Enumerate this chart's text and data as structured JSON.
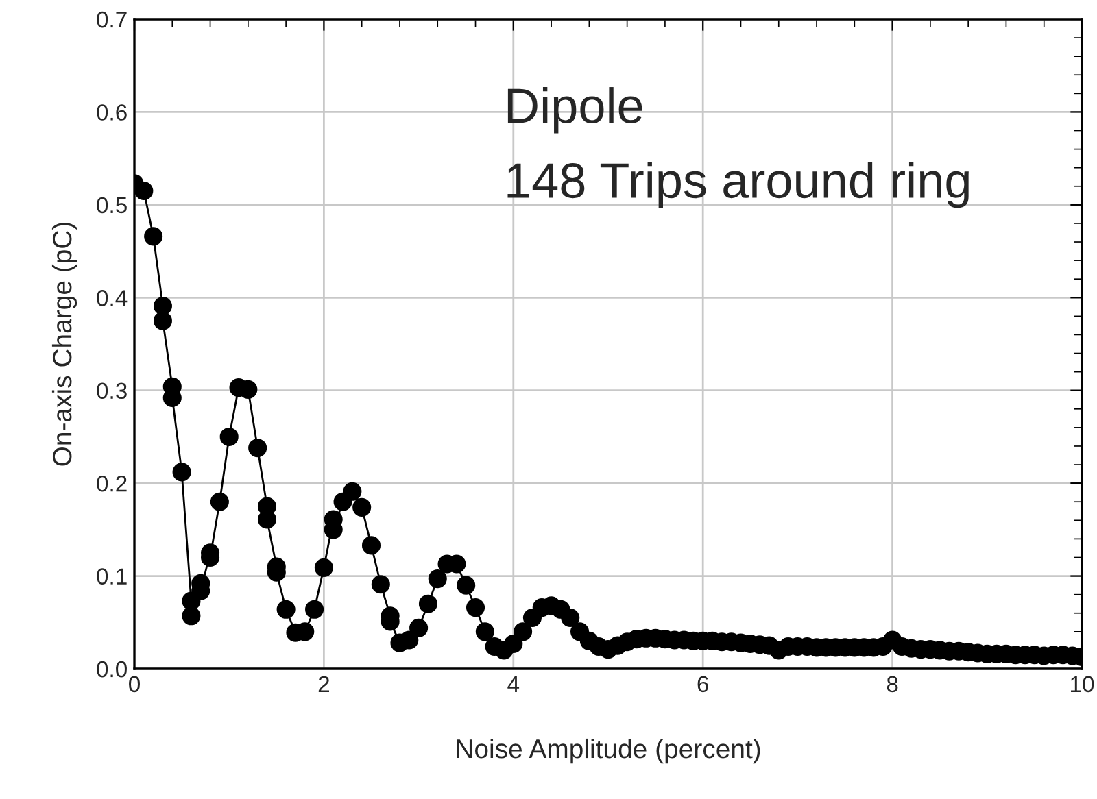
{
  "chart_data": {
    "type": "line",
    "xlabel": "Noise Amplitude (percent)",
    "ylabel": "On-axis Charge (pC)",
    "annotations": [
      "Dipole",
      "148 Trips around ring"
    ],
    "xlim": [
      0,
      10
    ],
    "xticks": [
      0,
      2,
      4,
      6,
      8,
      10
    ],
    "ylim": [
      0,
      0.7
    ],
    "yticks": [
      {
        "value": 0,
        "label": "0.0"
      },
      0.1,
      0.2,
      0.3,
      0.4,
      0.5,
      0.6,
      0.7
    ],
    "grid": true,
    "marker": "circle",
    "line_style": "solid",
    "series": [
      {
        "color": "#000000",
        "x": [
          0,
          0.1,
          0.2,
          0.3,
          0.3,
          0.4,
          0.4,
          0.5,
          0.6,
          0.6,
          0.7,
          0.7,
          0.8,
          0.8,
          0.9,
          1.0,
          1.1,
          1.2,
          1.3,
          1.4,
          1.4,
          1.5,
          1.5,
          1.6,
          1.7,
          1.8,
          1.9,
          2.0,
          2.1,
          2.1,
          2.2,
          2.3,
          2.4,
          2.5,
          2.6,
          2.7,
          2.7,
          2.8,
          2.9,
          3.0,
          3.1,
          3.2,
          3.3,
          3.4,
          3.5,
          3.6,
          3.7,
          3.8,
          3.9,
          4.0,
          4.1,
          4.2,
          4.3,
          4.4,
          4.5,
          4.6,
          4.7,
          4.8,
          4.9,
          5.0,
          5.1,
          5.2,
          5.3,
          5.4,
          5.5,
          5.6,
          5.7,
          5.8,
          5.9,
          6.0,
          6.1,
          6.2,
          6.3,
          6.4,
          6.5,
          6.6,
          6.7,
          6.8,
          6.9,
          7.0,
          7.1,
          7.2,
          7.3,
          7.4,
          7.5,
          7.6,
          7.7,
          7.8,
          7.9,
          8.0,
          8.1,
          8.2,
          8.3,
          8.4,
          8.5,
          8.6,
          8.7,
          8.8,
          8.9,
          9.0,
          9.1,
          9.2,
          9.3,
          9.4,
          9.5,
          9.6,
          9.7,
          9.8,
          9.9,
          10.0
        ],
        "values": [
          0.523,
          0.515,
          0.466,
          0.391,
          0.375,
          0.304,
          0.292,
          0.212,
          0.073,
          0.057,
          0.092,
          0.084,
          0.125,
          0.12,
          0.18,
          0.25,
          0.303,
          0.301,
          0.238,
          0.175,
          0.161,
          0.11,
          0.104,
          0.064,
          0.039,
          0.04,
          0.064,
          0.109,
          0.161,
          0.15,
          0.18,
          0.191,
          0.174,
          0.133,
          0.091,
          0.057,
          0.051,
          0.028,
          0.031,
          0.044,
          0.07,
          0.097,
          0.113,
          0.113,
          0.09,
          0.066,
          0.04,
          0.024,
          0.02,
          0.027,
          0.04,
          0.055,
          0.066,
          0.068,
          0.064,
          0.055,
          0.04,
          0.03,
          0.024,
          0.021,
          0.025,
          0.029,
          0.032,
          0.033,
          0.033,
          0.032,
          0.031,
          0.031,
          0.03,
          0.03,
          0.03,
          0.029,
          0.029,
          0.028,
          0.027,
          0.026,
          0.025,
          0.02,
          0.024,
          0.024,
          0.024,
          0.023,
          0.023,
          0.023,
          0.023,
          0.023,
          0.023,
          0.023,
          0.024,
          0.031,
          0.024,
          0.022,
          0.021,
          0.021,
          0.02,
          0.019,
          0.019,
          0.018,
          0.017,
          0.016,
          0.016,
          0.016,
          0.015,
          0.015,
          0.015,
          0.014,
          0.015,
          0.015,
          0.014,
          0.013
        ]
      }
    ]
  }
}
